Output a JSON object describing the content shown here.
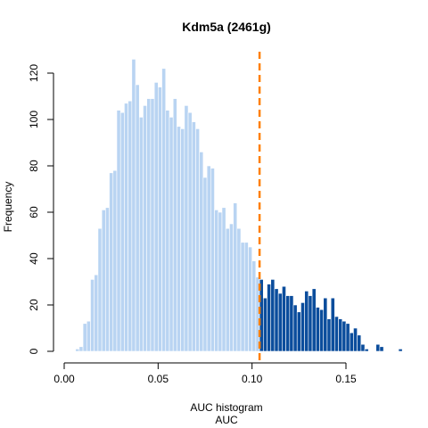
{
  "chart_data": {
    "type": "bar",
    "title": "Kdm5a (2461g)",
    "subtitle": "AUC histogram",
    "xlabel": "AUC",
    "ylabel": "Frequency",
    "xlim": [
      0,
      0.175
    ],
    "ylim": [
      0,
      120
    ],
    "x_ticks": [
      0.0,
      0.05,
      0.1,
      0.15
    ],
    "x_tick_labels": [
      "0.00",
      "0.05",
      "0.10",
      "0.15"
    ],
    "y_ticks": [
      0,
      20,
      40,
      60,
      80,
      100,
      120
    ],
    "y_tick_labels": [
      "0",
      "20",
      "40",
      "60",
      "80",
      "100",
      "120"
    ],
    "bin_width": 0.002,
    "bin_start": 0.006,
    "values": [
      1,
      2,
      12,
      13,
      31,
      33,
      53,
      61,
      62,
      77,
      78,
      104,
      103,
      107,
      108,
      126,
      115,
      101,
      106,
      109,
      109,
      116,
      114,
      122,
      104,
      101,
      109,
      97,
      96,
      106,
      103,
      99,
      96,
      86,
      75,
      80,
      79,
      61,
      60,
      62,
      53,
      55,
      64,
      53,
      47,
      47,
      45,
      39,
      32,
      31,
      23,
      29,
      31,
      27,
      25,
      28,
      24,
      24,
      20,
      17,
      21,
      26,
      24,
      27,
      19,
      18,
      23,
      14,
      23,
      15,
      14,
      13,
      12,
      8,
      10,
      7,
      3,
      1,
      0,
      0,
      3,
      2,
      0,
      0,
      0,
      0,
      1
    ],
    "threshold": 0.104,
    "colors": {
      "below_threshold": "#b9d4f2",
      "above_threshold": "#0b4d9c",
      "threshold_line": "#ff7f00"
    }
  }
}
